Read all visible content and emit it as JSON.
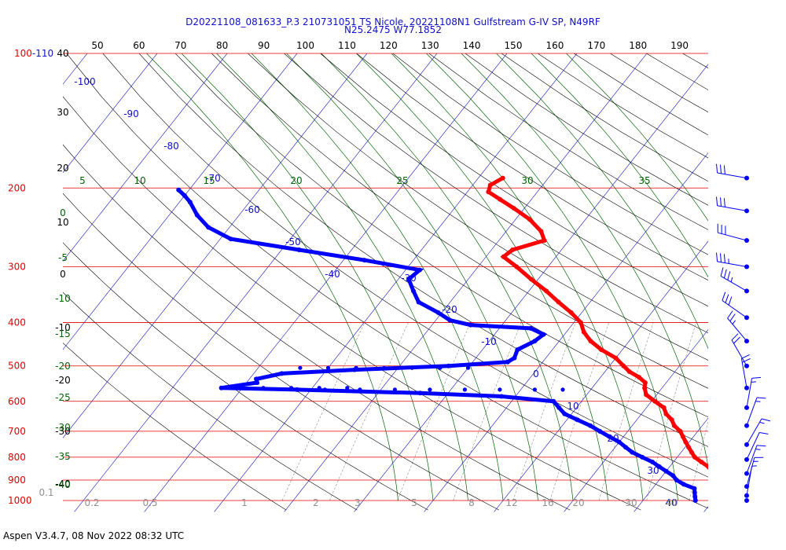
{
  "header": {
    "title_line1": "D20221108_081633_P.3 210731051 TS Nicole, 20221108N1 Gulfstream G-IV SP, N49RF",
    "title_line2": "N25.2475 W77.1852"
  },
  "footer": {
    "version": "Aspen V3.4.7, 08 Nov 2022  08:32 UTC"
  },
  "colors": {
    "isobar": "#e00000",
    "isotherm": "#1010c8",
    "dry_adiabat": "#000000",
    "moist_adiabat": "#006400",
    "mixing_ratio": "#909090",
    "temperature": "#ff0000",
    "dewpoint": "#0000ff",
    "wind": "#0000ff"
  },
  "chart_data": {
    "type": "scatter",
    "title": "",
    "ylim": [
      1000,
      100
    ],
    "pressure_ticks": [
      {
        "p": 1000,
        "label": "1000"
      },
      {
        "p": 900,
        "label": "900"
      },
      {
        "p": 800,
        "label": "800"
      },
      {
        "p": 700,
        "label": "700"
      },
      {
        "p": 600,
        "label": "600"
      },
      {
        "p": 500,
        "label": "500"
      },
      {
        "p": 400,
        "label": "400"
      },
      {
        "p": 300,
        "label": "300"
      },
      {
        "p": 200,
        "label": "200"
      },
      {
        "p": 100,
        "label": "100-110"
      }
    ],
    "isotherm_labels": [
      "-100",
      "-90",
      "-80",
      "-70",
      "-60",
      "-50",
      "-40",
      "-30",
      "-20",
      "-10",
      "0",
      "10",
      "20",
      "30",
      "40"
    ],
    "potential_temp_labels": [
      "50",
      "60",
      "70",
      "80",
      "90",
      "100",
      "110",
      "120",
      "130",
      "140",
      "150",
      "160",
      "170",
      "180",
      "190"
    ],
    "theta_e_labels": [
      "5",
      "10",
      "15",
      "20",
      "25",
      "30",
      "35"
    ],
    "left_scale_black": [
      "40",
      "30",
      "20",
      "10",
      "0",
      "-10",
      "-20",
      "-30",
      "-40"
    ],
    "left_scale_green": [
      "0",
      "-5",
      "-10",
      "-15",
      "-20",
      "-25",
      "-30",
      "-35",
      "-40"
    ],
    "mixing_ratio_labels": [
      "0.1",
      "0.2",
      "0.5",
      "1",
      "2",
      "3",
      "5",
      "8",
      "12",
      "16",
      "20",
      "30",
      "40"
    ],
    "series": [
      {
        "name": "Temperature",
        "points": [
          {
            "p": 1000,
            "t": 26.0
          },
          {
            "p": 980,
            "t": 23.5
          },
          {
            "p": 960,
            "t": 21.5
          },
          {
            "p": 940,
            "t": 20.5
          },
          {
            "p": 920,
            "t": 19.5
          },
          {
            "p": 900,
            "t": 18.5
          },
          {
            "p": 880,
            "t": 17.5
          },
          {
            "p": 860,
            "t": 16.5
          },
          {
            "p": 840,
            "t": 15.5
          },
          {
            "p": 820,
            "t": 14.0
          },
          {
            "p": 800,
            "t": 12.5
          },
          {
            "p": 780,
            "t": 11.5
          },
          {
            "p": 760,
            "t": 10.5
          },
          {
            "p": 740,
            "t": 9.5
          },
          {
            "p": 720,
            "t": 8.5
          },
          {
            "p": 700,
            "t": 7.5
          },
          {
            "p": 680,
            "t": 6.0
          },
          {
            "p": 660,
            "t": 5.0
          },
          {
            "p": 640,
            "t": 3.5
          },
          {
            "p": 620,
            "t": 2.5
          },
          {
            "p": 600,
            "t": 0.5
          },
          {
            "p": 580,
            "t": -1.5
          },
          {
            "p": 560,
            "t": -2.5
          },
          {
            "p": 545,
            "t": -3.0
          },
          {
            "p": 530,
            "t": -4.5
          },
          {
            "p": 515,
            "t": -6.5
          },
          {
            "p": 500,
            "t": -8.0
          },
          {
            "p": 480,
            "t": -10.0
          },
          {
            "p": 460,
            "t": -13.0
          },
          {
            "p": 440,
            "t": -15.5
          },
          {
            "p": 420,
            "t": -17.5
          },
          {
            "p": 400,
            "t": -19.0
          },
          {
            "p": 380,
            "t": -21.5
          },
          {
            "p": 360,
            "t": -24.5
          },
          {
            "p": 340,
            "t": -27.5
          },
          {
            "p": 320,
            "t": -31.0
          },
          {
            "p": 300,
            "t": -34.5
          },
          {
            "p": 285,
            "t": -37.5
          },
          {
            "p": 275,
            "t": -37.0
          },
          {
            "p": 262,
            "t": -33.5
          },
          {
            "p": 250,
            "t": -35.0
          },
          {
            "p": 235,
            "t": -38.0
          },
          {
            "p": 222,
            "t": -41.5
          },
          {
            "p": 212,
            "t": -44.5
          },
          {
            "p": 204,
            "t": -47.0
          },
          {
            "p": 197,
            "t": -47.5
          },
          {
            "p": 190,
            "t": -46.5
          }
        ]
      },
      {
        "name": "Dewpoint",
        "points": [
          {
            "p": 1000,
            "t": 17.5
          },
          {
            "p": 980,
            "t": 17.0
          },
          {
            "p": 960,
            "t": 16.5
          },
          {
            "p": 940,
            "t": 16.0
          },
          {
            "p": 920,
            "t": 14.0
          },
          {
            "p": 900,
            "t": 12.5
          },
          {
            "p": 880,
            "t": 11.5
          },
          {
            "p": 860,
            "t": 10.0
          },
          {
            "p": 840,
            "t": 8.5
          },
          {
            "p": 820,
            "t": 7.0
          },
          {
            "p": 800,
            "t": 5.0
          },
          {
            "p": 780,
            "t": 3.0
          },
          {
            "p": 760,
            "t": 1.5
          },
          {
            "p": 740,
            "t": 0.0
          },
          {
            "p": 720,
            "t": -2.0
          },
          {
            "p": 700,
            "t": -4.0
          },
          {
            "p": 680,
            "t": -6.0
          },
          {
            "p": 660,
            "t": -8.5
          },
          {
            "p": 640,
            "t": -11.0
          },
          {
            "p": 620,
            "t": -12.5
          },
          {
            "p": 600,
            "t": -14.0
          },
          {
            "p": 585,
            "t": -22.0
          },
          {
            "p": 575,
            "t": -34.0
          },
          {
            "p": 565,
            "t": -52.0
          },
          {
            "p": 560,
            "t": -63.0
          },
          {
            "p": 545,
            "t": -58.5
          },
          {
            "p": 535,
            "t": -59.0
          },
          {
            "p": 520,
            "t": -56.0
          },
          {
            "p": 510,
            "t": -46.0
          },
          {
            "p": 500,
            "t": -33.0
          },
          {
            "p": 490,
            "t": -25.0
          },
          {
            "p": 480,
            "t": -24.5
          },
          {
            "p": 460,
            "t": -25.0
          },
          {
            "p": 440,
            "t": -23.5
          },
          {
            "p": 425,
            "t": -23.0
          },
          {
            "p": 412,
            "t": -25.5
          },
          {
            "p": 405,
            "t": -34.5
          },
          {
            "p": 395,
            "t": -38.0
          },
          {
            "p": 380,
            "t": -40.5
          },
          {
            "p": 360,
            "t": -44.5
          },
          {
            "p": 340,
            "t": -46.5
          },
          {
            "p": 320,
            "t": -48.5
          },
          {
            "p": 305,
            "t": -48.0
          },
          {
            "p": 290,
            "t": -57.0
          },
          {
            "p": 275,
            "t": -67.5
          },
          {
            "p": 260,
            "t": -78.5
          },
          {
            "p": 245,
            "t": -83.0
          },
          {
            "p": 230,
            "t": -86.0
          },
          {
            "p": 215,
            "t": -88.5
          },
          {
            "p": 208,
            "t": -90.0
          },
          {
            "p": 202,
            "t": -91.5
          }
        ]
      }
    ],
    "wind_profile": [
      {
        "p": 190,
        "dir": 280,
        "spd": 30
      },
      {
        "p": 225,
        "dir": 280,
        "spd": 30
      },
      {
        "p": 262,
        "dir": 285,
        "spd": 30
      },
      {
        "p": 300,
        "dir": 280,
        "spd": 35
      },
      {
        "p": 340,
        "dir": 300,
        "spd": 35
      },
      {
        "p": 390,
        "dir": 305,
        "spd": 30
      },
      {
        "p": 440,
        "dir": 320,
        "spd": 25
      },
      {
        "p": 500,
        "dir": 330,
        "spd": 20
      },
      {
        "p": 560,
        "dir": 350,
        "spd": 20
      },
      {
        "p": 620,
        "dir": 10,
        "spd": 15
      },
      {
        "p": 680,
        "dir": 20,
        "spd": 15
      },
      {
        "p": 750,
        "dir": 30,
        "spd": 15
      },
      {
        "p": 810,
        "dir": 25,
        "spd": 10
      },
      {
        "p": 870,
        "dir": 20,
        "spd": 15
      },
      {
        "p": 930,
        "dir": 15,
        "spd": 15
      },
      {
        "p": 975,
        "dir": 10,
        "spd": 5
      },
      {
        "p": 1000,
        "dir": 0,
        "spd": 0
      }
    ]
  }
}
